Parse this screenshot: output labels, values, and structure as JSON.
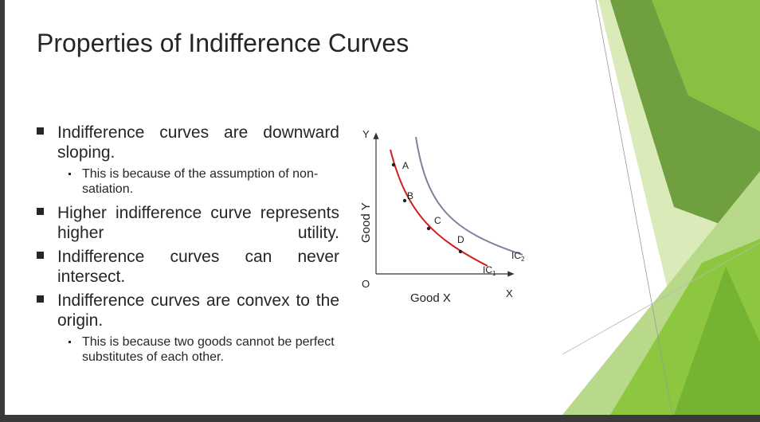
{
  "slide": {
    "title": "Properties of Indifference Curves",
    "bullets": [
      {
        "text": "Indifference curves are downward sloping.",
        "sub": "This is because of the assumption of non-satiation."
      },
      {
        "text": "Higher indifference curve represents higher utility."
      },
      {
        "text": "Indifference curves can never intersect."
      },
      {
        "text": "Indifference curves are convex to the origin.",
        "sub": "This is because two goods cannot be perfect substitutes of each other."
      }
    ]
  },
  "figure": {
    "y_axis_letter": "Y",
    "x_axis_letter": "X",
    "origin": "O",
    "x_label": "Good X",
    "y_label": "Good Y",
    "points": [
      "A",
      "B",
      "C",
      "D"
    ],
    "ic1": {
      "base": "IC",
      "sub": "1",
      "color": "#cc1f1f"
    },
    "ic2": {
      "base": "IC",
      "sub": "2",
      "color": "#7f7f9f"
    }
  },
  "theme": {
    "accent": "#8dc63f",
    "dark_accent": "#5a9a2e"
  }
}
